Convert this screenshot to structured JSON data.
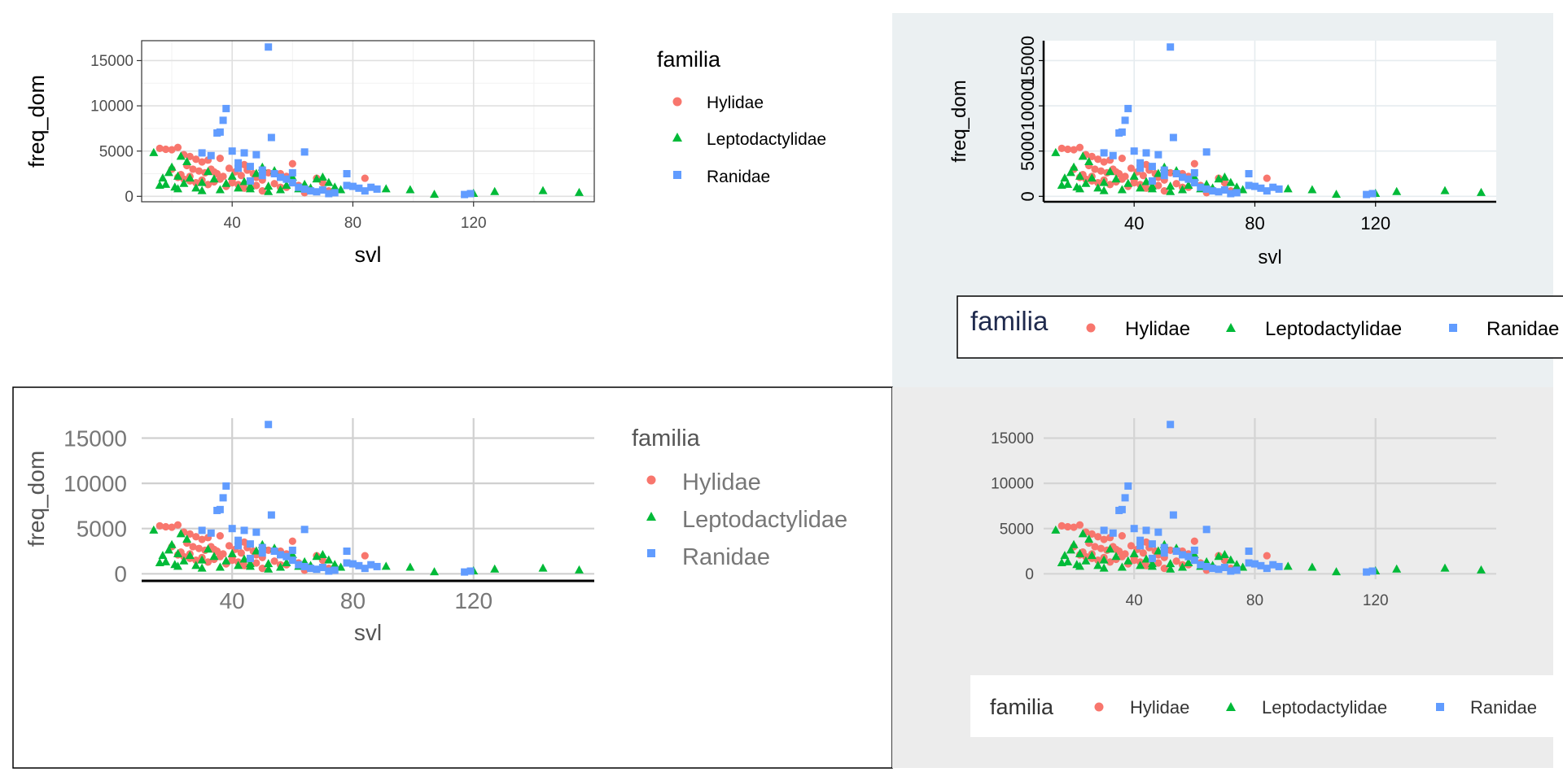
{
  "colors": {
    "Hylidae": "#F8766D",
    "Leptodactylidae": "#00BA38",
    "Ranidae": "#619CFF"
  },
  "chart_data": [
    {
      "type": "scatter",
      "theme": "bw",
      "xlabel": "svl",
      "ylabel": "freq_dom",
      "xlim": [
        10,
        160
      ],
      "ylim": [
        -600,
        17200
      ],
      "xticks": [
        "40",
        "80",
        "120"
      ],
      "yticks": [
        "0",
        "5000",
        "10000",
        "15000"
      ],
      "legend": {
        "title": "familia",
        "position": "right",
        "entries": [
          "Hylidae",
          "Leptodactylidae",
          "Ranidae"
        ]
      }
    },
    {
      "type": "scatter",
      "theme": "custom",
      "xlabel": "svl",
      "ylabel": "freq_dom",
      "xlim": [
        10,
        160
      ],
      "ylim": [
        -600,
        17200
      ],
      "xticks": [
        "40",
        "80",
        "120"
      ],
      "yticks": [
        "0",
        "5000",
        "10000",
        "15000"
      ],
      "legend": {
        "title": "familia",
        "position": "bottom",
        "entries": [
          "Hylidae",
          "Leptodactylidae",
          "Ranidae"
        ]
      }
    },
    {
      "type": "scatter",
      "theme": "minimal",
      "xlabel": "svl",
      "ylabel": "freq_dom",
      "xlim": [
        10,
        160
      ],
      "ylim": [
        -600,
        17200
      ],
      "xticks": [
        "40",
        "80",
        "120"
      ],
      "yticks": [
        "0",
        "5000",
        "10000",
        "15000"
      ],
      "legend": {
        "title": "familia",
        "position": "right",
        "entries": [
          "Hylidae",
          "Leptodactylidae",
          "Ranidae"
        ]
      }
    },
    {
      "type": "scatter",
      "theme": "grey-panel",
      "xlabel": "",
      "ylabel": "",
      "xlim": [
        10,
        160
      ],
      "ylim": [
        -600,
        17200
      ],
      "xticks": [
        "40",
        "80",
        "120"
      ],
      "yticks": [
        "0",
        "5000",
        "10000",
        "15000"
      ],
      "legend": {
        "title": "familia",
        "position": "bottom",
        "entries": [
          "Hylidae",
          "Leptodactylidae",
          "Ranidae"
        ]
      }
    }
  ],
  "series": [
    {
      "name": "Hylidae",
      "points": [
        [
          16,
          5300
        ],
        [
          18,
          5200
        ],
        [
          20,
          5150
        ],
        [
          22,
          5400
        ],
        [
          24,
          4600
        ],
        [
          26,
          4400
        ],
        [
          28,
          4100
        ],
        [
          30,
          3800
        ],
        [
          32,
          4000
        ],
        [
          25,
          3400
        ],
        [
          27,
          3000
        ],
        [
          29,
          2800
        ],
        [
          31,
          2600
        ],
        [
          33,
          3000
        ],
        [
          35,
          2500
        ],
        [
          37,
          2200
        ],
        [
          39,
          3100
        ],
        [
          41,
          2700
        ],
        [
          43,
          2300
        ],
        [
          45,
          2900
        ],
        [
          47,
          2500
        ],
        [
          22,
          2100
        ],
        [
          24,
          1900
        ],
        [
          26,
          1700
        ],
        [
          28,
          1500
        ],
        [
          30,
          1800
        ],
        [
          32,
          1300
        ],
        [
          34,
          1600
        ],
        [
          36,
          1900
        ],
        [
          38,
          1100
        ],
        [
          40,
          1500
        ],
        [
          42,
          1300
        ],
        [
          44,
          900
        ],
        [
          46,
          1600
        ],
        [
          48,
          1200
        ],
        [
          50,
          1800
        ],
        [
          52,
          2600
        ],
        [
          54,
          1400
        ],
        [
          56,
          1000
        ],
        [
          58,
          2200
        ],
        [
          60,
          3600
        ],
        [
          62,
          1200
        ],
        [
          64,
          900
        ],
        [
          66,
          700
        ],
        [
          68,
          2000
        ],
        [
          70,
          1500
        ],
        [
          72,
          600
        ],
        [
          84,
          2000
        ],
        [
          20,
          3000
        ],
        [
          23,
          2400
        ],
        [
          36,
          4200
        ],
        [
          44,
          3500
        ],
        [
          50,
          600
        ],
        [
          58,
          1000
        ],
        [
          64,
          400
        ],
        [
          26,
          2200
        ],
        [
          34,
          2700
        ],
        [
          40,
          1800
        ],
        [
          48,
          2100
        ],
        [
          56,
          2500
        ]
      ]
    },
    {
      "name": "Leptodactylidae",
      "points": [
        [
          14,
          4800
        ],
        [
          16,
          1200
        ],
        [
          18,
          1300
        ],
        [
          19,
          2600
        ],
        [
          20,
          3200
        ],
        [
          21,
          1000
        ],
        [
          22,
          2200
        ],
        [
          23,
          4400
        ],
        [
          24,
          1400
        ],
        [
          25,
          3800
        ],
        [
          26,
          2000
        ],
        [
          28,
          900
        ],
        [
          30,
          1500
        ],
        [
          32,
          2700
        ],
        [
          34,
          1900
        ],
        [
          36,
          700
        ],
        [
          38,
          1400
        ],
        [
          40,
          2200
        ],
        [
          42,
          900
        ],
        [
          44,
          1600
        ],
        [
          46,
          800
        ],
        [
          48,
          2500
        ],
        [
          50,
          3200
        ],
        [
          52,
          1100
        ],
        [
          54,
          2800
        ],
        [
          56,
          700
        ],
        [
          58,
          1200
        ],
        [
          60,
          2100
        ],
        [
          62,
          800
        ],
        [
          64,
          1300
        ],
        [
          66,
          900
        ],
        [
          68,
          1900
        ],
        [
          70,
          2100
        ],
        [
          72,
          1500
        ],
        [
          74,
          1000
        ],
        [
          76,
          700
        ],
        [
          91,
          800
        ],
        [
          99,
          700
        ],
        [
          107,
          200
        ],
        [
          120,
          300
        ],
        [
          127,
          500
        ],
        [
          143,
          600
        ],
        [
          155,
          400
        ],
        [
          17,
          2000
        ],
        [
          22,
          800
        ],
        [
          30,
          600
        ],
        [
          46,
          1100
        ],
        [
          52,
          500
        ]
      ]
    },
    {
      "name": "Ranidae",
      "points": [
        [
          52,
          16500
        ],
        [
          38,
          9700
        ],
        [
          37,
          8400
        ],
        [
          36,
          7100
        ],
        [
          35,
          7000
        ],
        [
          53,
          6500
        ],
        [
          64,
          4900
        ],
        [
          30,
          4800
        ],
        [
          33,
          4500
        ],
        [
          40,
          5000
        ],
        [
          44,
          4800
        ],
        [
          48,
          4600
        ],
        [
          42,
          3700
        ],
        [
          46,
          3300
        ],
        [
          50,
          2900
        ],
        [
          54,
          2500
        ],
        [
          56,
          2100
        ],
        [
          58,
          1900
        ],
        [
          60,
          1500
        ],
        [
          62,
          1000
        ],
        [
          64,
          800
        ],
        [
          66,
          600
        ],
        [
          68,
          500
        ],
        [
          70,
          700
        ],
        [
          72,
          300
        ],
        [
          74,
          400
        ],
        [
          78,
          2500
        ],
        [
          78,
          1200
        ],
        [
          80,
          1100
        ],
        [
          82,
          900
        ],
        [
          84,
          600
        ],
        [
          86,
          1000
        ],
        [
          88,
          800
        ],
        [
          117,
          200
        ],
        [
          119,
          300
        ],
        [
          42,
          3100
        ],
        [
          46,
          1700
        ],
        [
          50,
          2300
        ],
        [
          60,
          2600
        ]
      ]
    }
  ]
}
